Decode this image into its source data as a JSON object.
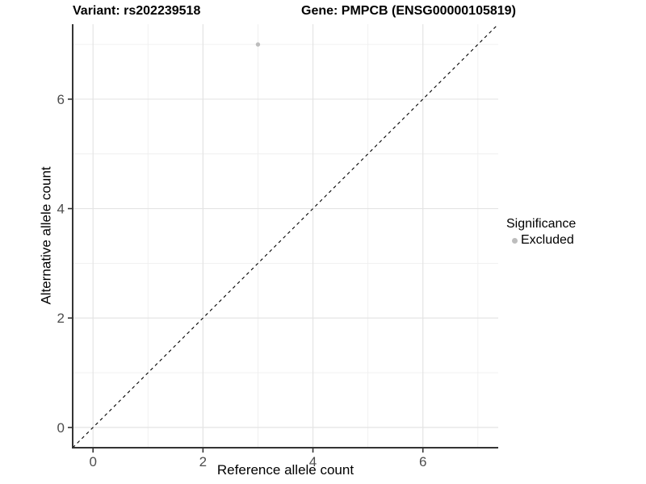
{
  "header": {
    "title_left": "Variant: rs202239518",
    "title_right": "Gene: PMPCB (ENSG00000105819)"
  },
  "legend": {
    "title": "Significance",
    "items": [
      {
        "label": "Excluded",
        "color": "#bdbdbd"
      }
    ]
  },
  "chart_data": {
    "type": "scatter",
    "title": "Variant: rs202239518   Gene: PMPCB (ENSG00000105819)",
    "xlabel": "Reference allele count",
    "ylabel": "Alternative allele count",
    "xlim": [
      -0.37,
      7.37
    ],
    "ylim": [
      -0.37,
      7.37
    ],
    "x_ticks": [
      0,
      2,
      4,
      6
    ],
    "y_ticks": [
      0,
      2,
      4,
      6
    ],
    "x_minor_gridlines": [
      1,
      3,
      5,
      7
    ],
    "y_minor_gridlines": [
      1,
      3,
      5,
      7
    ],
    "grid": true,
    "legend_position": "right",
    "legend_title": "Significance",
    "series": [
      {
        "name": "Excluded",
        "color": "#bdbdbd",
        "points": [
          {
            "x": 3,
            "y": 7
          }
        ]
      }
    ],
    "reference_line": {
      "type": "identity y=x",
      "style": "dashed",
      "color": "#000000"
    }
  },
  "colors": {
    "axis_line": "#343434",
    "grid_major": "#e4e4e4",
    "grid_minor": "#efefef",
    "tick_label": "#4d4d4d",
    "background": "#ffffff"
  }
}
